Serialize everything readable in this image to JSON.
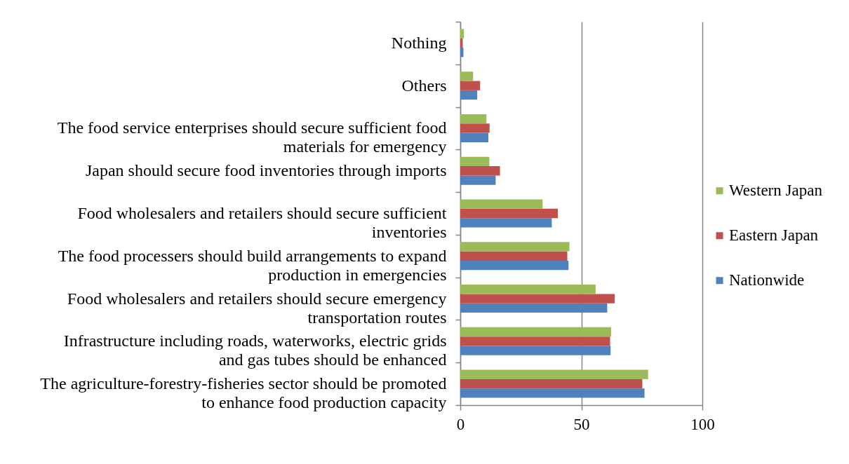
{
  "chart_data": {
    "type": "bar",
    "orientation": "horizontal",
    "categories": [
      "Nothing",
      "Others",
      "The food service enterprises should secure sufficient food materials for emergency",
      "Japan should secure food inventories through imports",
      "Food wholesalers and retailers should secure sufficient inventories",
      "The food processers should build arrangements to expand production in emergencies",
      "Food wholesalers and retailers should secure emergency transportation routes",
      "Infrastructure including roads, waterworks, electric grids and gas tubes should be enhanced",
      "The agriculture-forestry-fisheries sector should be promoted to enhance food production capacity"
    ],
    "series": [
      {
        "name": "Nationwide",
        "color": "#4f81bd",
        "values": [
          1.3,
          7.0,
          11.6,
          14.6,
          37.8,
          44.7,
          60.7,
          62.1,
          76.1
        ]
      },
      {
        "name": "Eastern Japan",
        "color": "#c0504d",
        "values": [
          1.0,
          8.2,
          12.1,
          16.4,
          40.3,
          44.2,
          63.8,
          61.9,
          75.2
        ]
      },
      {
        "name": "Western Japan",
        "color": "#9bbb59",
        "values": [
          1.5,
          5.3,
          10.8,
          12.0,
          34.0,
          45.1,
          55.9,
          62.3,
          77.6
        ]
      }
    ],
    "xlim": [
      0,
      100
    ],
    "xticks": [
      0,
      50,
      100
    ],
    "grid": "x",
    "legend": "right"
  }
}
